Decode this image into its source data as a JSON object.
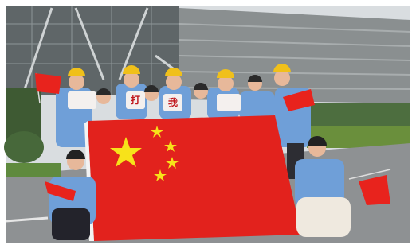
{
  "scene": {
    "signs": [
      "打",
      "我"
    ]
  }
}
